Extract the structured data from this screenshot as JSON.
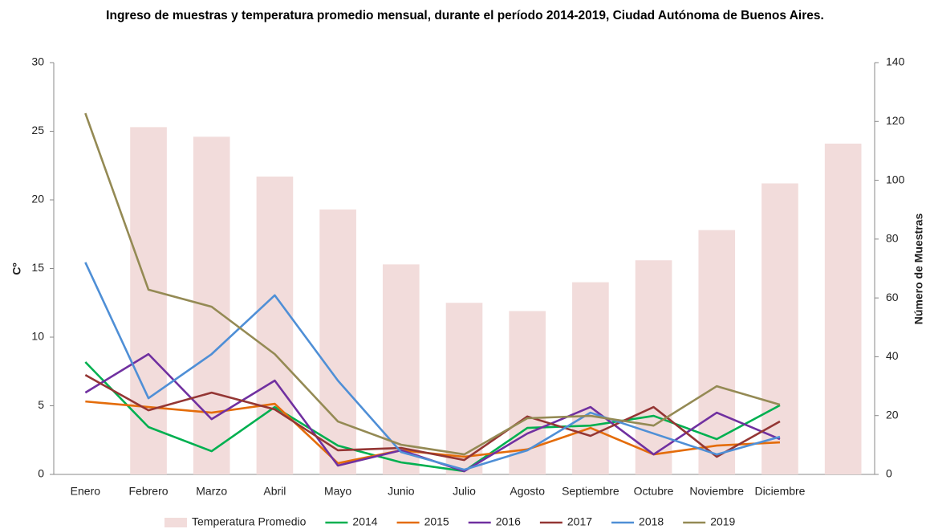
{
  "chart_data": {
    "type": "combo",
    "title": "Ingreso de muestras y temperatura promedio mensual, durante el período 2014-2019, Ciudad Autónoma de Buenos Aires.",
    "ylabel": "Cº",
    "y2label": "Número de Muestras",
    "categories": [
      "Enero",
      "Febrero",
      "Marzo",
      "Abril",
      "Mayo",
      "Junio",
      "Julio",
      "Agosto",
      "Septiembre",
      "Octubre",
      "Noviembre",
      "Diciembre",
      null
    ],
    "ylim": [
      0,
      30
    ],
    "yticks": [
      0,
      5,
      10,
      15,
      20,
      25,
      30
    ],
    "y2lim": [
      0,
      140
    ],
    "y2ticks": [
      0,
      20,
      40,
      60,
      80,
      100,
      120,
      140
    ],
    "series": [
      {
        "name": "Temperatura Promedio",
        "type": "bar",
        "color": "#f2dcdb",
        "values": [
          null,
          25.3,
          24.6,
          21.7,
          19.3,
          15.3,
          12.5,
          11.9,
          14.0,
          15.6,
          17.8,
          21.2,
          24.1
        ]
      },
      {
        "name": "2014",
        "type": "line",
        "axis": "y2",
        "color": "#00b050",
        "values": [
          38.2,
          16.1,
          7.9,
          22.9,
          9.8,
          4.1,
          1.1,
          15.8,
          16.6,
          19.9,
          12.0,
          23.5,
          null
        ]
      },
      {
        "name": "2015",
        "type": "line",
        "axis": "y2",
        "color": "#e46c0a",
        "values": [
          24.8,
          22.9,
          21.0,
          24.0,
          3.8,
          8.2,
          6.0,
          8.5,
          15.8,
          6.8,
          9.8,
          10.9,
          null
        ]
      },
      {
        "name": "2016",
        "type": "line",
        "axis": "y2",
        "color": "#7030a0",
        "values": [
          27.8,
          40.9,
          18.8,
          31.9,
          3.0,
          8.2,
          1.1,
          13.9,
          22.9,
          6.8,
          21.0,
          12.0,
          null
        ]
      },
      {
        "name": "2017",
        "type": "line",
        "axis": "y2",
        "color": "#943634",
        "values": [
          33.8,
          21.8,
          27.8,
          22.1,
          8.2,
          9.0,
          4.9,
          19.7,
          13.1,
          22.9,
          6.0,
          18.0,
          null
        ]
      },
      {
        "name": "2018",
        "type": "line",
        "axis": "y2",
        "color": "#4f8fd6",
        "values": [
          72.1,
          25.9,
          40.9,
          60.9,
          31.9,
          7.6,
          1.6,
          8.2,
          21.0,
          13.9,
          6.8,
          12.8,
          null
        ]
      },
      {
        "name": "2019",
        "type": "line",
        "axis": "y2",
        "color": "#948a54",
        "values": [
          122.8,
          62.8,
          57.0,
          40.9,
          18.0,
          10.1,
          6.8,
          19.1,
          19.9,
          16.6,
          30.0,
          23.7,
          null
        ]
      }
    ]
  }
}
